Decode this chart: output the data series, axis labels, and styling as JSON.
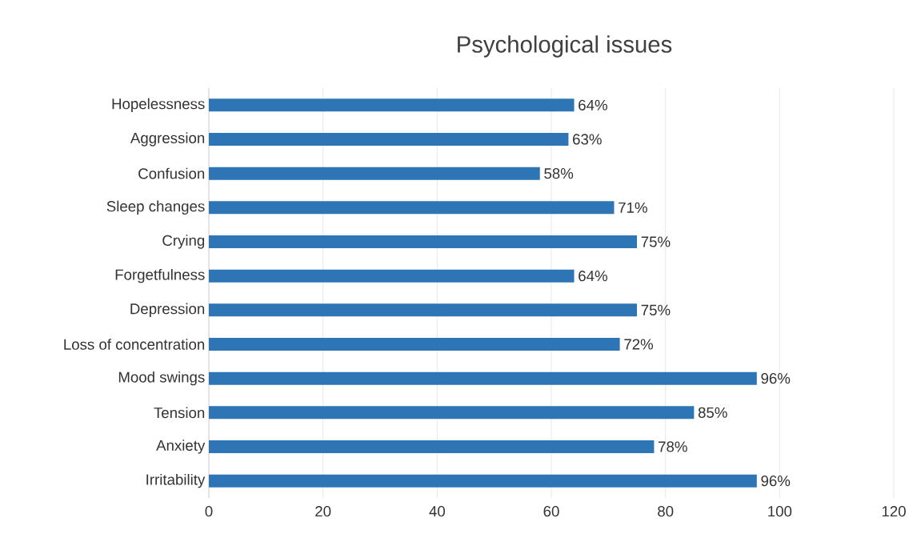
{
  "chart_data": {
    "type": "bar",
    "orientation": "horizontal",
    "title": "Psychological issues",
    "categories": [
      "Hopelessness",
      "Aggression",
      "Confusion",
      "Sleep changes",
      "Crying",
      "Forgetfulness",
      "Depression",
      "Loss of concentration",
      "Mood swings",
      "Tension",
      "Anxiety",
      "Irritability"
    ],
    "values": [
      64,
      63,
      58,
      71,
      75,
      64,
      75,
      72,
      96,
      85,
      78,
      96
    ],
    "value_labels": [
      "64%",
      "63%",
      "58%",
      "71%",
      "75%",
      "64%",
      "75%",
      "72%",
      "96%",
      "85%",
      "78%",
      "96%"
    ],
    "color": "#2e75b6",
    "xlim": [
      0,
      120
    ],
    "xticks": [
      0,
      20,
      40,
      60,
      80,
      100,
      120
    ],
    "grid": "x"
  }
}
